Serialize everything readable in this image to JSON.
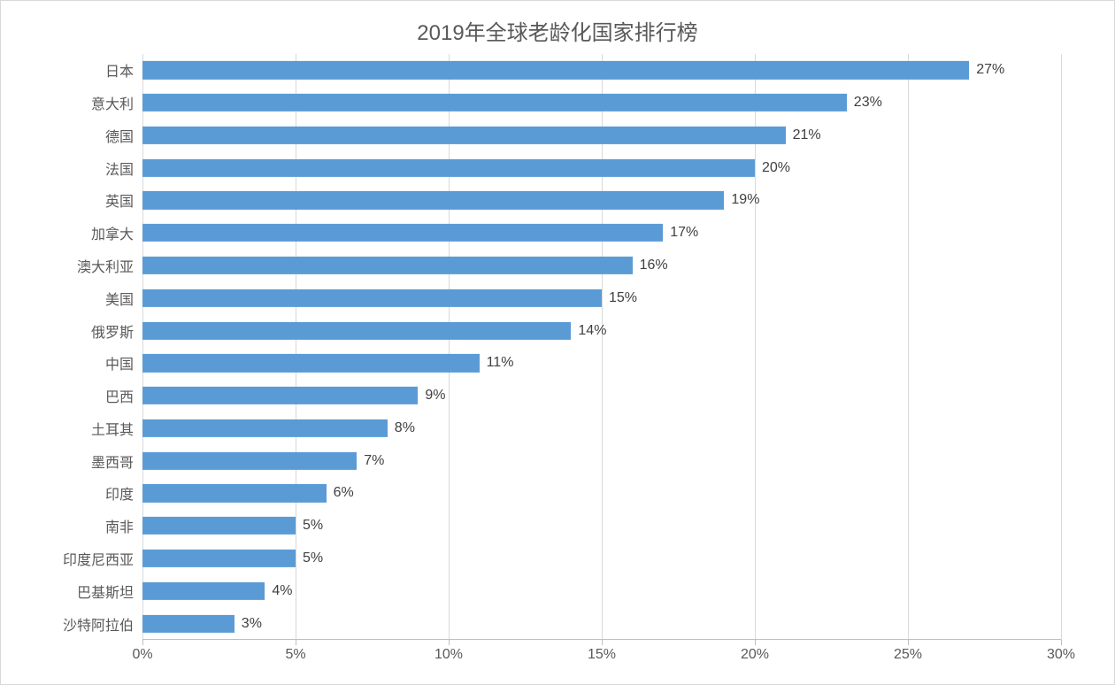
{
  "chart": {
    "type": "bar",
    "orientation": "horizontal",
    "title": "2019年全球老龄化国家排行榜",
    "title_fontsize": 24,
    "title_color": "#595959",
    "background_color": "#ffffff",
    "border_color": "#d9d9d9",
    "bar_color": "#5b9bd5",
    "grid_color": "#d9d9d9",
    "axis_line_color": "#bfbfbf",
    "tick_color": "#bfbfbf",
    "label_color": "#595959",
    "value_label_color": "#404040",
    "label_fontsize": 16,
    "value_fontsize": 16,
    "tick_fontsize": 16,
    "xlim": [
      0,
      30
    ],
    "xtick_step": 5,
    "xtick_suffix": "%",
    "value_suffix": "%",
    "bar_height_ratio": 0.55,
    "categories": [
      "日本",
      "意大利",
      "德国",
      "法国",
      "英国",
      "加拿大",
      "澳大利亚",
      "美国",
      "俄罗斯",
      "中国",
      "巴西",
      "土耳其",
      "墨西哥",
      "印度",
      "南非",
      "印度尼西亚",
      "巴基斯坦",
      "沙特阿拉伯"
    ],
    "values": [
      27,
      23,
      21,
      20,
      19,
      17,
      16,
      15,
      14,
      11,
      9,
      8,
      7,
      6,
      5,
      5,
      4,
      3
    ]
  }
}
